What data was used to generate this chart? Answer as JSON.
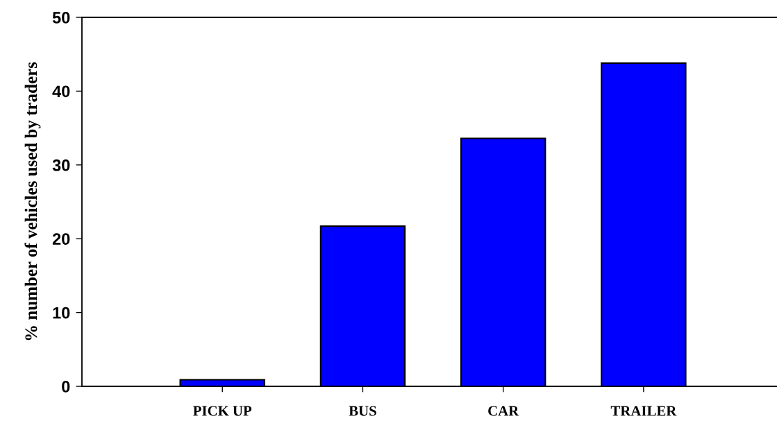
{
  "chart_data": {
    "type": "bar",
    "ylabel": "% number of vehicles used by traders",
    "categories": [
      "PICK UP",
      "BUS",
      "CAR",
      "TRAILER"
    ],
    "values": [
      0.9,
      21.7,
      33.6,
      43.8
    ],
    "color": "#0000ff",
    "ylim": [
      0,
      50
    ],
    "yticks": [
      0,
      10,
      20,
      30,
      40,
      50
    ],
    "grid": false,
    "legend": false
  }
}
